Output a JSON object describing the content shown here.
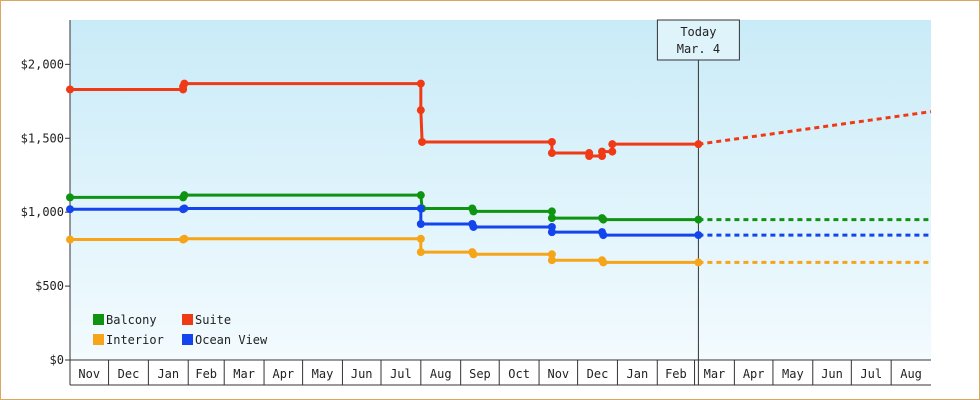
{
  "chart_data": {
    "type": "line",
    "ylim": [
      0,
      2300
    ],
    "y_ticks": [
      {
        "value": 0,
        "label": "$0"
      },
      {
        "value": 500,
        "label": "$500"
      },
      {
        "value": 1000,
        "label": "$1,000"
      },
      {
        "value": 1500,
        "label": "$1,500"
      },
      {
        "value": 2000,
        "label": "$2,000"
      }
    ],
    "x_range": [
      "2014-11-01",
      "2016-09-01"
    ],
    "x_months": [
      {
        "date": "2014-11-01",
        "label": "Nov"
      },
      {
        "date": "2014-12-01",
        "label": "Dec"
      },
      {
        "date": "2015-01-01",
        "label": "Jan"
      },
      {
        "date": "2015-02-01",
        "label": "Feb"
      },
      {
        "date": "2015-03-01",
        "label": "Mar"
      },
      {
        "date": "2015-04-01",
        "label": "Apr"
      },
      {
        "date": "2015-05-01",
        "label": "May"
      },
      {
        "date": "2015-06-01",
        "label": "Jun"
      },
      {
        "date": "2015-07-01",
        "label": "Jul"
      },
      {
        "date": "2015-08-01",
        "label": "Aug"
      },
      {
        "date": "2015-09-01",
        "label": "Sep"
      },
      {
        "date": "2015-10-01",
        "label": "Oct"
      },
      {
        "date": "2015-11-01",
        "label": "Nov"
      },
      {
        "date": "2015-12-01",
        "label": "Dec"
      },
      {
        "date": "2016-01-01",
        "label": "Jan"
      },
      {
        "date": "2016-02-01",
        "label": "Feb"
      },
      {
        "date": "2016-03-01",
        "label": "Mar"
      },
      {
        "date": "2016-04-01",
        "label": "Apr"
      },
      {
        "date": "2016-05-01",
        "label": "May"
      },
      {
        "date": "2016-06-01",
        "label": "Jun"
      },
      {
        "date": "2016-07-01",
        "label": "Jul"
      },
      {
        "date": "2016-08-01",
        "label": "Aug"
      }
    ],
    "today": {
      "date": "2016-03-04",
      "label_line1": "Today",
      "label_line2": "Mar. 4"
    },
    "series": [
      {
        "name": "Suite",
        "color": "#f03a16",
        "points": [
          [
            "2014-11-01",
            1830
          ],
          [
            "2015-01-28",
            1830
          ],
          [
            "2015-01-28",
            1850
          ],
          [
            "2015-01-29",
            1870
          ],
          [
            "2015-08-01",
            1870
          ],
          [
            "2015-08-01",
            1690
          ],
          [
            "2015-08-02",
            1475
          ],
          [
            "2015-11-11",
            1475
          ],
          [
            "2015-11-11",
            1400
          ],
          [
            "2015-12-10",
            1400
          ],
          [
            "2015-12-10",
            1380
          ],
          [
            "2015-12-20",
            1380
          ],
          [
            "2015-12-20",
            1410
          ],
          [
            "2015-12-28",
            1410
          ],
          [
            "2015-12-28",
            1460
          ],
          [
            "2016-03-04",
            1460
          ]
        ],
        "projection": [
          [
            "2016-03-04",
            1460
          ],
          [
            "2016-09-01",
            1680
          ]
        ]
      },
      {
        "name": "Balcony",
        "color": "#0f9412",
        "points": [
          [
            "2014-11-01",
            1100
          ],
          [
            "2015-01-28",
            1100
          ],
          [
            "2015-01-29",
            1115
          ],
          [
            "2015-08-01",
            1115
          ],
          [
            "2015-08-02",
            1025
          ],
          [
            "2015-09-10",
            1025
          ],
          [
            "2015-09-11",
            1005
          ],
          [
            "2015-11-11",
            1005
          ],
          [
            "2015-11-11",
            960
          ],
          [
            "2015-12-20",
            960
          ],
          [
            "2015-12-21",
            950
          ],
          [
            "2016-03-04",
            950
          ]
        ],
        "projection": [
          [
            "2016-03-04",
            950
          ],
          [
            "2016-09-01",
            950
          ]
        ]
      },
      {
        "name": "Ocean View",
        "color": "#1444ee",
        "points": [
          [
            "2014-11-01",
            1020
          ],
          [
            "2015-01-28",
            1020
          ],
          [
            "2015-01-29",
            1025
          ],
          [
            "2015-08-01",
            1025
          ],
          [
            "2015-08-01",
            920
          ],
          [
            "2015-09-10",
            920
          ],
          [
            "2015-09-11",
            900
          ],
          [
            "2015-11-11",
            900
          ],
          [
            "2015-11-11",
            865
          ],
          [
            "2015-12-20",
            865
          ],
          [
            "2015-12-21",
            845
          ],
          [
            "2016-03-04",
            845
          ]
        ],
        "projection": [
          [
            "2016-03-04",
            845
          ],
          [
            "2016-09-01",
            845
          ]
        ]
      },
      {
        "name": "Interior",
        "color": "#f6a418",
        "points": [
          [
            "2014-11-01",
            815
          ],
          [
            "2015-01-28",
            815
          ],
          [
            "2015-01-29",
            820
          ],
          [
            "2015-08-01",
            820
          ],
          [
            "2015-08-01",
            730
          ],
          [
            "2015-09-10",
            730
          ],
          [
            "2015-09-11",
            715
          ],
          [
            "2015-11-11",
            715
          ],
          [
            "2015-11-11",
            675
          ],
          [
            "2015-12-20",
            675
          ],
          [
            "2015-12-21",
            660
          ],
          [
            "2016-03-04",
            660
          ]
        ],
        "projection": [
          [
            "2016-03-04",
            660
          ],
          [
            "2016-09-01",
            660
          ]
        ]
      }
    ],
    "legend": [
      {
        "name": "Balcony",
        "color": "#0f9412"
      },
      {
        "name": "Suite",
        "color": "#f03a16"
      },
      {
        "name": "Interior",
        "color": "#f6a418"
      },
      {
        "name": "Ocean View",
        "color": "#1444ee"
      }
    ]
  }
}
